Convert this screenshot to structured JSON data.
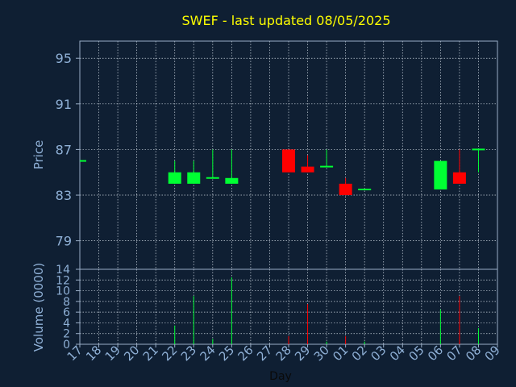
{
  "chart_data": {
    "type": "candlestick",
    "title": "SWEF - last updated 08/05/2025",
    "xlabel": "Day",
    "ylabel": "Price",
    "volume_label": "Volume (0000)",
    "x_ticks": [
      "17",
      "18",
      "19",
      "20",
      "21",
      "22",
      "23",
      "24",
      "25",
      "26",
      "27",
      "28",
      "29",
      "30",
      "01",
      "02",
      "03",
      "04",
      "05",
      "06",
      "07",
      "08",
      "09"
    ],
    "price_ylim": [
      76.5,
      96.5
    ],
    "price_ticks": [
      79,
      83,
      87,
      91,
      95
    ],
    "volume_ylim": [
      0,
      14
    ],
    "volume_ticks": [
      0,
      2,
      4,
      6,
      8,
      10,
      12,
      14
    ],
    "grid": true,
    "colors": {
      "background": "#0f1f33",
      "axis": "#9aaec7",
      "tick_text": "#8fb0d6",
      "title": "#ffff00",
      "up": "#00ff33",
      "down": "#ff0000"
    },
    "candles": [
      {
        "x": "17",
        "open": 86.0,
        "high": 86.0,
        "low": 86.0,
        "close": 86.0,
        "volume": 0
      },
      {
        "x": "22",
        "open": 84.0,
        "high": 86.0,
        "low": 84.0,
        "close": 85.0,
        "volume": 3.5
      },
      {
        "x": "23",
        "open": 84.0,
        "high": 86.0,
        "low": 84.0,
        "close": 85.0,
        "volume": 9.0
      },
      {
        "x": "24",
        "open": 84.5,
        "high": 87.0,
        "low": 84.5,
        "close": 84.5,
        "volume": 1.0
      },
      {
        "x": "25",
        "open": 84.0,
        "high": 87.0,
        "low": 84.0,
        "close": 84.5,
        "volume": 12.5
      },
      {
        "x": "28",
        "open": 87.0,
        "high": 87.0,
        "low": 85.0,
        "close": 85.0,
        "volume": 1.5
      },
      {
        "x": "29",
        "open": 85.5,
        "high": 86.5,
        "low": 85.0,
        "close": 85.0,
        "volume": 7.5
      },
      {
        "x": "30",
        "open": 85.5,
        "high": 87.0,
        "low": 85.5,
        "close": 85.5,
        "volume": 0.5
      },
      {
        "x": "01",
        "open": 84.0,
        "high": 84.5,
        "low": 83.0,
        "close": 83.0,
        "volume": 1.5
      },
      {
        "x": "02",
        "open": 83.5,
        "high": 83.5,
        "low": 83.5,
        "close": 83.5,
        "volume": 0.5
      },
      {
        "x": "06",
        "open": 83.5,
        "high": 86.0,
        "low": 83.5,
        "close": 86.0,
        "volume": 6.5
      },
      {
        "x": "07",
        "open": 85.0,
        "high": 87.0,
        "low": 84.0,
        "close": 84.0,
        "volume": 9.0
      },
      {
        "x": "08",
        "open": 87.0,
        "high": 87.0,
        "low": 85.0,
        "close": 87.0,
        "volume": 3.0
      }
    ]
  }
}
